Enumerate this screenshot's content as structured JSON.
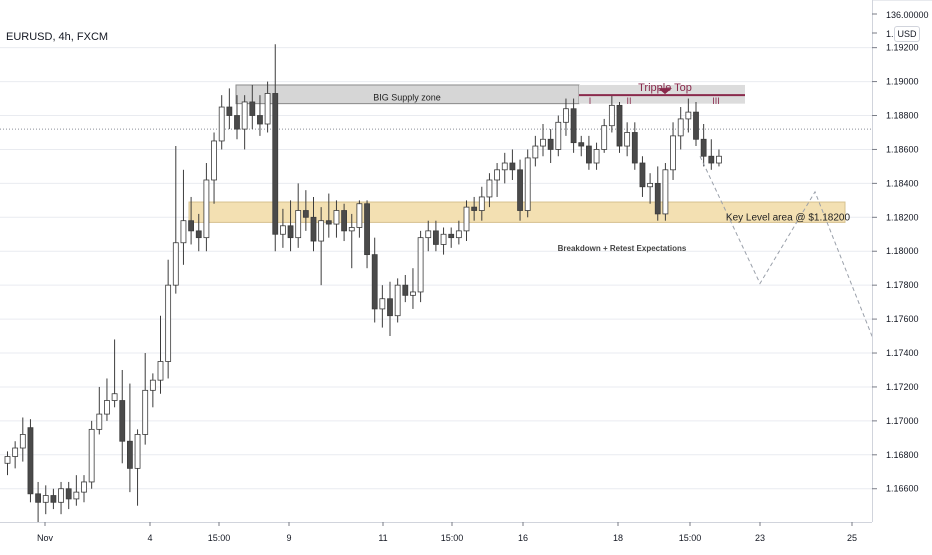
{
  "header": {
    "symbol": "EURUSD, 4h, FXCM",
    "currency": "USD"
  },
  "chart_data": {
    "type": "candlestick",
    "ylim": [
      1.1651,
      1.1931
    ],
    "price_labels": [
      "136.00000",
      "1.",
      "1.19200",
      "1.19000",
      "1.18800",
      "1.18600",
      "1.18400",
      "1.18200",
      "1.18000",
      "1.17800",
      "1.17600",
      "1.17400",
      "1.17200",
      "1.17000",
      "1.16800",
      "1.16600"
    ],
    "time_labels": [
      "Nov",
      "4",
      "15:00",
      "9",
      "11",
      "15:00",
      "16",
      "18",
      "15:00",
      "23",
      "25"
    ],
    "candles": [
      [
        1.1675,
        1.1682,
        1.1668,
        1.1679
      ],
      [
        1.1679,
        1.1688,
        1.1672,
        1.1684
      ],
      [
        1.1684,
        1.1702,
        1.1676,
        1.1692
      ],
      [
        1.1696,
        1.1701,
        1.1652,
        1.1657
      ],
      [
        1.1657,
        1.1664,
        1.164,
        1.1652
      ],
      [
        1.1652,
        1.1662,
        1.1645,
        1.1656
      ],
      [
        1.1656,
        1.166,
        1.1648,
        1.1652
      ],
      [
        1.1652,
        1.1664,
        1.1645,
        1.166
      ],
      [
        1.166,
        1.1664,
        1.1648,
        1.1654
      ],
      [
        1.1654,
        1.1668,
        1.165,
        1.1658
      ],
      [
        1.1658,
        1.1668,
        1.1652,
        1.1664
      ],
      [
        1.1664,
        1.17,
        1.166,
        1.1695
      ],
      [
        1.1695,
        1.172,
        1.1692,
        1.1704
      ],
      [
        1.1704,
        1.1725,
        1.17,
        1.1712
      ],
      [
        1.1712,
        1.1748,
        1.1708,
        1.1716
      ],
      [
        1.1712,
        1.173,
        1.1675,
        1.1688
      ],
      [
        1.1688,
        1.1722,
        1.1658,
        1.1672
      ],
      [
        1.1672,
        1.1695,
        1.165,
        1.1692
      ],
      [
        1.1692,
        1.174,
        1.1686,
        1.1718
      ],
      [
        1.1718,
        1.1728,
        1.1708,
        1.1724
      ],
      [
        1.1724,
        1.1762,
        1.1716,
        1.1735
      ],
      [
        1.1735,
        1.1795,
        1.1725,
        1.178
      ],
      [
        1.178,
        1.1862,
        1.1775,
        1.1805
      ],
      [
        1.1805,
        1.1848,
        1.1792,
        1.1818
      ],
      [
        1.1818,
        1.1832,
        1.1804,
        1.1812
      ],
      [
        1.1812,
        1.1822,
        1.18,
        1.1808
      ],
      [
        1.1808,
        1.1852,
        1.18,
        1.1842
      ],
      [
        1.1842,
        1.187,
        1.1828,
        1.1865
      ],
      [
        1.1865,
        1.1892,
        1.186,
        1.1885
      ],
      [
        1.1885,
        1.1896,
        1.1872,
        1.188
      ],
      [
        1.188,
        1.1892,
        1.1866,
        1.1872
      ],
      [
        1.1872,
        1.1892,
        1.186,
        1.1888
      ],
      [
        1.1888,
        1.1898,
        1.1872,
        1.188
      ],
      [
        1.188,
        1.1892,
        1.1868,
        1.1875
      ],
      [
        1.1875,
        1.19,
        1.187,
        1.1893
      ],
      [
        1.1893,
        1.1922,
        1.18,
        1.181
      ],
      [
        1.181,
        1.1825,
        1.1802,
        1.1815
      ],
      [
        1.1815,
        1.183,
        1.18,
        1.1808
      ],
      [
        1.1808,
        1.184,
        1.1802,
        1.1824
      ],
      [
        1.1824,
        1.1836,
        1.1812,
        1.182
      ],
      [
        1.182,
        1.1832,
        1.18,
        1.1806
      ],
      [
        1.1806,
        1.1826,
        1.178,
        1.1818
      ],
      [
        1.1818,
        1.1834,
        1.1808,
        1.1816
      ],
      [
        1.1816,
        1.183,
        1.1808,
        1.1824
      ],
      [
        1.1824,
        1.1828,
        1.1806,
        1.1812
      ],
      [
        1.1812,
        1.1822,
        1.179,
        1.1814
      ],
      [
        1.1814,
        1.183,
        1.1808,
        1.1828
      ],
      [
        1.1828,
        1.183,
        1.179,
        1.1798
      ],
      [
        1.1798,
        1.1808,
        1.1758,
        1.1766
      ],
      [
        1.1766,
        1.178,
        1.1755,
        1.1772
      ],
      [
        1.1772,
        1.1782,
        1.175,
        1.1762
      ],
      [
        1.1762,
        1.1784,
        1.1758,
        1.178
      ],
      [
        1.178,
        1.1786,
        1.177,
        1.1774
      ],
      [
        1.1774,
        1.179,
        1.1766,
        1.1776
      ],
      [
        1.1776,
        1.1812,
        1.177,
        1.1808
      ],
      [
        1.1808,
        1.1818,
        1.18,
        1.1812
      ],
      [
        1.1812,
        1.1818,
        1.18,
        1.1804
      ],
      [
        1.1804,
        1.1814,
        1.1798,
        1.181
      ],
      [
        1.181,
        1.1814,
        1.1802,
        1.1808
      ],
      [
        1.1808,
        1.1818,
        1.1804,
        1.1812
      ],
      [
        1.1812,
        1.183,
        1.1806,
        1.1826
      ],
      [
        1.1826,
        1.1832,
        1.1818,
        1.1824
      ],
      [
        1.1824,
        1.1838,
        1.1818,
        1.1832
      ],
      [
        1.1832,
        1.1846,
        1.1826,
        1.1842
      ],
      [
        1.1842,
        1.1852,
        1.1832,
        1.1848
      ],
      [
        1.1848,
        1.1858,
        1.184,
        1.1852
      ],
      [
        1.1852,
        1.186,
        1.1842,
        1.1848
      ],
      [
        1.1848,
        1.1854,
        1.1818,
        1.1824
      ],
      [
        1.1824,
        1.186,
        1.182,
        1.1855
      ],
      [
        1.1855,
        1.1868,
        1.185,
        1.1862
      ],
      [
        1.1862,
        1.1875,
        1.1856,
        1.1866
      ],
      [
        1.1866,
        1.1872,
        1.1852,
        1.186
      ],
      [
        1.186,
        1.188,
        1.1856,
        1.1876
      ],
      [
        1.1876,
        1.189,
        1.1868,
        1.1884
      ],
      [
        1.1884,
        1.189,
        1.1858,
        1.1864
      ],
      [
        1.1864,
        1.1868,
        1.1856,
        1.1862
      ],
      [
        1.1862,
        1.1868,
        1.1848,
        1.1852
      ],
      [
        1.1852,
        1.1864,
        1.1848,
        1.186
      ],
      [
        1.186,
        1.1878,
        1.1858,
        1.1874
      ],
      [
        1.1874,
        1.1892,
        1.187,
        1.1886
      ],
      [
        1.1886,
        1.1888,
        1.1858,
        1.1862
      ],
      [
        1.1862,
        1.1876,
        1.1856,
        1.187
      ],
      [
        1.187,
        1.1876,
        1.1848,
        1.1852
      ],
      [
        1.1852,
        1.1856,
        1.1832,
        1.1838
      ],
      [
        1.1838,
        1.1846,
        1.1828,
        1.184
      ],
      [
        1.184,
        1.185,
        1.1818,
        1.1822
      ],
      [
        1.1822,
        1.1852,
        1.1818,
        1.1848
      ],
      [
        1.1848,
        1.1876,
        1.1842,
        1.1868
      ],
      [
        1.1868,
        1.1885,
        1.186,
        1.1878
      ],
      [
        1.1878,
        1.189,
        1.187,
        1.1882
      ],
      [
        1.1882,
        1.1888,
        1.1862,
        1.1866
      ],
      [
        1.1866,
        1.1875,
        1.185,
        1.1856
      ],
      [
        1.1856,
        1.1866,
        1.1848,
        1.1852
      ],
      [
        1.1852,
        1.186,
        1.185,
        1.1856
      ]
    ],
    "annotations": {
      "supply_zone": {
        "label": "BIG Supply zone",
        "from": 1.1887,
        "to": 1.1898
      },
      "key_level": {
        "label": "Key Level area @ $1.18200",
        "from": 1.1817,
        "to": 1.1829
      },
      "retest_note": "Breakdown + Retest Expectations",
      "pattern_title": "Tripple Top",
      "pattern_marks": [
        "I",
        "II",
        "III"
      ],
      "resistance_line": 1.1892,
      "current_price_line": 1.1872,
      "projection_path": [
        1.1856,
        1.1781,
        1.1835,
        1.1738
      ]
    },
    "colors": {
      "bull_body": "#ffffff",
      "bear_body": "#4a4a4a",
      "candle_border": "#3c3c3c",
      "supply_fill": "#d6d6d6",
      "key_fill": "#f3e0b2",
      "pattern_accent": "#8a2a4c",
      "grid": "#e9ebf0",
      "axis_text": "#131722"
    }
  }
}
